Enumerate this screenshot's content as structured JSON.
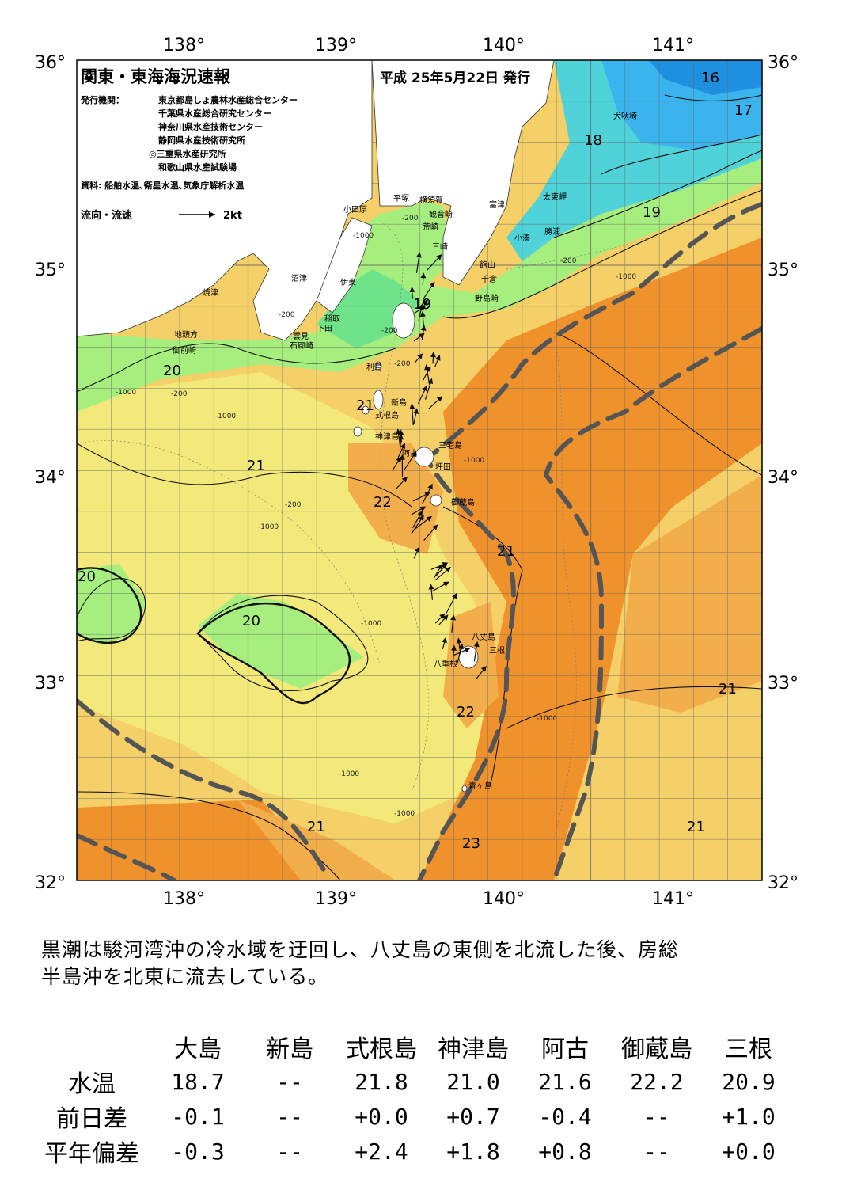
{
  "map": {
    "title": "関東・東海海況速報",
    "date": "平成 25年5月22日 発行",
    "issuer_label": "発行機関：",
    "issuers": [
      "東京都島しょ農林水産総合センター",
      "千葉県水産総合研究センター",
      "神奈川県水産技術センター",
      "静岡県水産技術研究所",
      "◎三重県水産研究所",
      "和歌山県水産試験場"
    ],
    "source": "資料: 船舶水温､衛星水温､気象庁解析水温",
    "flow_legend_label": "流向・流速",
    "flow_legend_unit": "2kt",
    "lon_labels": [
      "138°",
      "139°",
      "140°",
      "141°"
    ],
    "lat_labels": [
      "36°",
      "35°",
      "34°",
      "33°",
      "32°"
    ],
    "place_names": [
      "小田原",
      "平塚",
      "横須賀",
      "観音崎",
      "荒崎",
      "三崎",
      "富津",
      "館山",
      "千倉",
      "野島崎",
      "太東岬",
      "勝浦",
      "小湊",
      "犬吠埼",
      "沼津",
      "伊東",
      "焼津",
      "稲取",
      "下田",
      "雲見",
      "石廊崎",
      "地頭方",
      "御前崎",
      "利島",
      "新島",
      "式根島",
      "神津島",
      "阿古",
      "三宅島",
      "坪田",
      "御蔵島",
      "八丈島",
      "三根",
      "八重根",
      "青ヶ島"
    ],
    "isotherm_labels": [
      "16",
      "17",
      "18",
      "19",
      "19",
      "20",
      "21",
      "21",
      "20",
      "22",
      "21",
      "20",
      "21",
      "22",
      "21",
      "23",
      "21"
    ],
    "depth_labels": [
      "-200",
      "-1000"
    ],
    "colors": {
      "c16": "#1f8fe0",
      "c17": "#3bb4ee",
      "c18": "#4fd3d8",
      "c19": "#6ee38a",
      "c20": "#a6ef7e",
      "c21": "#f2e97a",
      "c21b": "#f5cf68",
      "c22": "#f3ae4c",
      "c23": "#f0922b",
      "kuroshio_axis": "#555555"
    }
  },
  "summary": {
    "line1": "黒潮は駿河湾沖の冷水域を迂回し、八丈島の東側を北流した後、房総",
    "line2": "半島沖を北東に流去している。"
  },
  "table": {
    "columns": [
      "大島",
      "新島",
      "式根島",
      "神津島",
      "阿古",
      "御蔵島",
      "三根"
    ],
    "rows": [
      {
        "label": "水温",
        "values": [
          "18.7",
          "--",
          "21.8",
          "21.0",
          "21.6",
          "22.2",
          "20.9"
        ]
      },
      {
        "label": "前日差",
        "values": [
          "-0.1",
          "--",
          "+0.0",
          "+0.7",
          "-0.4",
          "--",
          "+1.0"
        ]
      },
      {
        "label": "平年偏差",
        "values": [
          "-0.3",
          "--",
          "+2.4",
          "+1.8",
          "+0.8",
          "--",
          "+0.0"
        ]
      }
    ]
  }
}
